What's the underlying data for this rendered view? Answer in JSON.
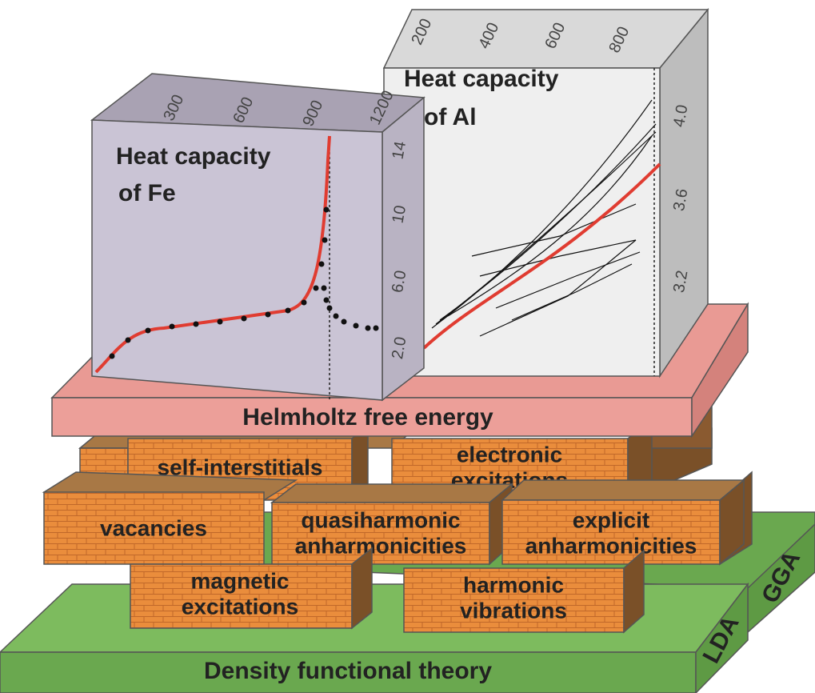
{
  "fe_panel": {
    "title": [
      "Heat capacity",
      "of Fe"
    ],
    "top_ticks": [
      "300",
      "600",
      "900",
      "1200"
    ],
    "side_ticks": [
      "14",
      "10",
      "6.0",
      "2.0"
    ]
  },
  "al_panel": {
    "title": [
      "Heat capacity",
      "of Al"
    ],
    "top_ticks": [
      "200",
      "400",
      "600",
      "800"
    ],
    "side_ticks": [
      "4.0",
      "3.6",
      "3.2"
    ]
  },
  "helmholtz": "Helmholtz free energy",
  "bricks": [
    {
      "lines": [
        "self-interstitials"
      ]
    },
    {
      "lines": [
        "electronic",
        "excitations"
      ]
    },
    {
      "lines": [
        "vacancies"
      ]
    },
    {
      "lines": [
        "quasiharmonic",
        "anharmonicities"
      ]
    },
    {
      "lines": [
        "explicit",
        "anharmonicities"
      ]
    },
    {
      "lines": [
        "magnetic",
        "excitations"
      ]
    },
    {
      "lines": [
        "harmonic",
        "vibrations"
      ]
    }
  ],
  "base": {
    "label": "Density functional theory",
    "lda": "LDA",
    "gga": "GGA"
  }
}
